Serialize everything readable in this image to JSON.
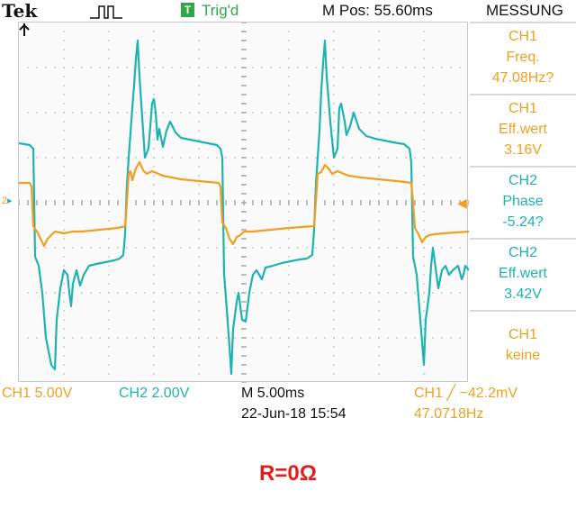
{
  "header": {
    "brand": "Tek",
    "trigger_state": "Trig'd",
    "trigger_mark": "T",
    "horizontal_position": "M Pos: 55.60ms",
    "menu_title": "MESSUNG"
  },
  "measurements": [
    {
      "channel": "CH1",
      "label": "Freq.",
      "value": "47.08Hz?",
      "color": "#f0a020"
    },
    {
      "channel": "CH1",
      "label": "Eff.wert",
      "value": "3.16V",
      "color": "#f0a020"
    },
    {
      "channel": "CH2",
      "label": "Phase",
      "value": "-5.24?",
      "color": "#1fb3b0"
    },
    {
      "channel": "CH2",
      "label": "Eff.wert",
      "value": "3.42V",
      "color": "#1fb3b0"
    },
    {
      "channel": "CH1",
      "label": "keine",
      "value": "",
      "color": "#f0a020"
    }
  ],
  "footer": {
    "ch1_scale": "CH1  5.00V",
    "ch2_scale": "CH2  2.00V",
    "timebase": "M 5.00ms",
    "date_time": "22-Jun-18 15:54",
    "trigger_readout": "CH1 ╱ −42.2mV",
    "trigger_freq": "47.0718Hz"
  },
  "markers": {
    "ch2_ground": "2",
    "trigger_arrow": "◀"
  },
  "caption": "R=0Ω",
  "colors": {
    "ch1": "#f0a020",
    "ch2": "#1fb3b0",
    "trigger": "#2ea84a",
    "caption": "#e02020"
  }
}
